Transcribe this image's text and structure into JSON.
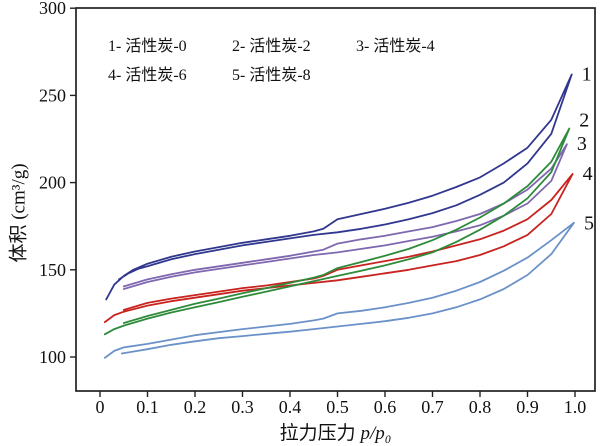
{
  "legend": {
    "rows": [
      [
        "1- 活性炭-0",
        "2- 活性炭-2",
        "3- 活性炭-4"
      ],
      [
        "4- 活性炭-6",
        "5- 活性炭-8"
      ]
    ]
  },
  "axes": {
    "x_name": "拉力压力",
    "x_math": "p/p₀",
    "y_label": "体积 (cm³/g)"
  },
  "chart_data": {
    "type": "line",
    "title": "",
    "xlabel": "拉力压力 p/p₀",
    "ylabel": "体积 (cm³/g)",
    "xlim": [
      -0.05,
      1.05
    ],
    "ylim": [
      80,
      300
    ],
    "xticks": [
      0,
      0.1,
      0.2,
      0.3,
      0.4,
      0.5,
      0.6,
      0.7,
      0.8,
      0.9,
      1.0
    ],
    "yticks": [
      100,
      150,
      200,
      250,
      300
    ],
    "grid": false,
    "legend_position": "top-left-inside",
    "axis_color": "#222222",
    "note": "N2 adsorption-desorption hysteresis loops; each series has lower adsorption branch and upper desorption branch meeting at a sharp tip near p/p0=1",
    "series": [
      {
        "id": "5",
        "name": "活性炭-8",
        "label": "5",
        "color": "#6b92c8",
        "label_dy": 1,
        "adsorption": [
          [
            0.046,
            102
          ],
          [
            0.1,
            104.5
          ],
          [
            0.15,
            107
          ],
          [
            0.2,
            109
          ],
          [
            0.25,
            110.8
          ],
          [
            0.3,
            112
          ],
          [
            0.35,
            113.3
          ],
          [
            0.4,
            114.5
          ],
          [
            0.45,
            116
          ],
          [
            0.5,
            117.5
          ],
          [
            0.55,
            119
          ],
          [
            0.6,
            120.5
          ],
          [
            0.65,
            122.5
          ],
          [
            0.7,
            125
          ],
          [
            0.75,
            128.5
          ],
          [
            0.8,
            133
          ],
          [
            0.85,
            139
          ],
          [
            0.9,
            147
          ],
          [
            0.95,
            159
          ],
          [
            0.998,
            177
          ]
        ],
        "desorption": [
          [
            0.01,
            99.5
          ],
          [
            0.03,
            103.5
          ],
          [
            0.05,
            105.5
          ],
          [
            0.1,
            107.5
          ],
          [
            0.15,
            110
          ],
          [
            0.2,
            112.5
          ],
          [
            0.25,
            114.3
          ],
          [
            0.3,
            116
          ],
          [
            0.35,
            117.5
          ],
          [
            0.4,
            119
          ],
          [
            0.45,
            121
          ],
          [
            0.47,
            122
          ],
          [
            0.5,
            125
          ],
          [
            0.55,
            126.5
          ],
          [
            0.6,
            128.5
          ],
          [
            0.65,
            131
          ],
          [
            0.7,
            134
          ],
          [
            0.75,
            138
          ],
          [
            0.8,
            143
          ],
          [
            0.85,
            149.5
          ],
          [
            0.9,
            157
          ],
          [
            0.95,
            167
          ],
          [
            0.998,
            177
          ]
        ]
      },
      {
        "id": "4",
        "name": "活性炭-6",
        "label": "4",
        "color": "#c8231e",
        "label_dy": 0,
        "adsorption": [
          [
            0.01,
            120
          ],
          [
            0.03,
            124
          ],
          [
            0.05,
            126
          ],
          [
            0.1,
            129.5
          ],
          [
            0.15,
            132
          ],
          [
            0.2,
            134
          ],
          [
            0.25,
            136
          ],
          [
            0.3,
            138
          ],
          [
            0.35,
            139.5
          ],
          [
            0.4,
            141
          ],
          [
            0.45,
            142.5
          ],
          [
            0.5,
            144
          ],
          [
            0.55,
            146
          ],
          [
            0.6,
            148
          ],
          [
            0.65,
            150
          ],
          [
            0.7,
            152.5
          ],
          [
            0.75,
            155
          ],
          [
            0.8,
            158.5
          ],
          [
            0.85,
            163.5
          ],
          [
            0.9,
            170
          ],
          [
            0.95,
            182
          ],
          [
            0.995,
            205
          ]
        ],
        "desorption": [
          [
            0.05,
            127
          ],
          [
            0.1,
            131
          ],
          [
            0.15,
            133.5
          ],
          [
            0.2,
            135.5
          ],
          [
            0.25,
            137.5
          ],
          [
            0.3,
            139.5
          ],
          [
            0.35,
            141
          ],
          [
            0.4,
            143
          ],
          [
            0.45,
            145
          ],
          [
            0.47,
            146.5
          ],
          [
            0.5,
            150
          ],
          [
            0.55,
            152.5
          ],
          [
            0.6,
            155
          ],
          [
            0.65,
            157.5
          ],
          [
            0.7,
            160.5
          ],
          [
            0.75,
            164
          ],
          [
            0.8,
            167.5
          ],
          [
            0.85,
            172.5
          ],
          [
            0.9,
            179
          ],
          [
            0.95,
            190
          ],
          [
            0.995,
            205
          ]
        ]
      },
      {
        "id": "3",
        "name": "活性炭-4",
        "label": "3",
        "color": "#7f68b0",
        "label_dy": 0,
        "adsorption": [
          [
            0.05,
            139
          ],
          [
            0.1,
            143
          ],
          [
            0.15,
            146
          ],
          [
            0.2,
            148.5
          ],
          [
            0.25,
            150.5
          ],
          [
            0.3,
            152.5
          ],
          [
            0.35,
            154.5
          ],
          [
            0.4,
            156.5
          ],
          [
            0.45,
            158.5
          ],
          [
            0.5,
            160
          ],
          [
            0.55,
            162
          ],
          [
            0.6,
            164
          ],
          [
            0.65,
            166.5
          ],
          [
            0.7,
            169
          ],
          [
            0.75,
            172
          ],
          [
            0.8,
            175.5
          ],
          [
            0.85,
            181
          ],
          [
            0.9,
            188
          ],
          [
            0.95,
            201
          ],
          [
            0.983,
            222
          ]
        ],
        "desorption": [
          [
            0.05,
            140.5
          ],
          [
            0.1,
            144.5
          ],
          [
            0.15,
            147.5
          ],
          [
            0.2,
            150
          ],
          [
            0.25,
            152
          ],
          [
            0.3,
            154
          ],
          [
            0.35,
            156
          ],
          [
            0.4,
            158
          ],
          [
            0.45,
            160.5
          ],
          [
            0.47,
            161.5
          ],
          [
            0.5,
            165
          ],
          [
            0.55,
            167.5
          ],
          [
            0.6,
            169.5
          ],
          [
            0.65,
            172
          ],
          [
            0.7,
            174.5
          ],
          [
            0.75,
            178
          ],
          [
            0.8,
            182
          ],
          [
            0.85,
            188
          ],
          [
            0.9,
            196
          ],
          [
            0.95,
            208
          ],
          [
            0.983,
            222
          ]
        ]
      },
      {
        "id": "2",
        "name": "活性炭-2",
        "label": "2",
        "color": "#2e8b3a",
        "label_dy": -8,
        "adsorption": [
          [
            0.01,
            113
          ],
          [
            0.03,
            116
          ],
          [
            0.05,
            118
          ],
          [
            0.1,
            122
          ],
          [
            0.15,
            125.5
          ],
          [
            0.2,
            128.5
          ],
          [
            0.25,
            131.5
          ],
          [
            0.3,
            134.5
          ],
          [
            0.35,
            137.5
          ],
          [
            0.4,
            140.5
          ],
          [
            0.45,
            143.5
          ],
          [
            0.5,
            146.5
          ],
          [
            0.55,
            149.5
          ],
          [
            0.6,
            152.5
          ],
          [
            0.65,
            156
          ],
          [
            0.7,
            160
          ],
          [
            0.75,
            166
          ],
          [
            0.8,
            173
          ],
          [
            0.85,
            181
          ],
          [
            0.9,
            191
          ],
          [
            0.95,
            206
          ],
          [
            0.988,
            231
          ]
        ],
        "desorption": [
          [
            0.05,
            119.5
          ],
          [
            0.1,
            123.5
          ],
          [
            0.15,
            127
          ],
          [
            0.2,
            130.5
          ],
          [
            0.25,
            133.5
          ],
          [
            0.3,
            136.5
          ],
          [
            0.35,
            139.5
          ],
          [
            0.4,
            142.5
          ],
          [
            0.45,
            145.5
          ],
          [
            0.47,
            147
          ],
          [
            0.5,
            151
          ],
          [
            0.55,
            154.5
          ],
          [
            0.6,
            158
          ],
          [
            0.65,
            162
          ],
          [
            0.7,
            167
          ],
          [
            0.75,
            173
          ],
          [
            0.8,
            180
          ],
          [
            0.85,
            188
          ],
          [
            0.9,
            198
          ],
          [
            0.95,
            212
          ],
          [
            0.988,
            231
          ]
        ]
      },
      {
        "id": "1",
        "name": "活性炭-0",
        "label": "1",
        "color": "#31378f",
        "label_dy": 0,
        "adsorption": [
          [
            0.04,
            144.5
          ],
          [
            0.06,
            148
          ],
          [
            0.08,
            150.5
          ],
          [
            0.1,
            152
          ],
          [
            0.15,
            156
          ],
          [
            0.2,
            159
          ],
          [
            0.25,
            161.5
          ],
          [
            0.3,
            164
          ],
          [
            0.35,
            166
          ],
          [
            0.4,
            168
          ],
          [
            0.45,
            170
          ],
          [
            0.5,
            171.5
          ],
          [
            0.55,
            173.5
          ],
          [
            0.6,
            176
          ],
          [
            0.65,
            179
          ],
          [
            0.7,
            182.5
          ],
          [
            0.75,
            187
          ],
          [
            0.8,
            193
          ],
          [
            0.85,
            200
          ],
          [
            0.9,
            211
          ],
          [
            0.95,
            228
          ],
          [
            0.993,
            262
          ]
        ],
        "desorption": [
          [
            0.013,
            133
          ],
          [
            0.03,
            141.5
          ],
          [
            0.05,
            146.5
          ],
          [
            0.07,
            150
          ],
          [
            0.1,
            153.5
          ],
          [
            0.15,
            157.5
          ],
          [
            0.2,
            160.5
          ],
          [
            0.25,
            163
          ],
          [
            0.3,
            165.5
          ],
          [
            0.35,
            167.5
          ],
          [
            0.4,
            169.5
          ],
          [
            0.45,
            172
          ],
          [
            0.47,
            173.5
          ],
          [
            0.5,
            179
          ],
          [
            0.55,
            182
          ],
          [
            0.6,
            185
          ],
          [
            0.65,
            188.5
          ],
          [
            0.7,
            192.5
          ],
          [
            0.75,
            197.5
          ],
          [
            0.8,
            203
          ],
          [
            0.85,
            211
          ],
          [
            0.9,
            220
          ],
          [
            0.95,
            236
          ],
          [
            0.993,
            262
          ]
        ]
      }
    ]
  }
}
